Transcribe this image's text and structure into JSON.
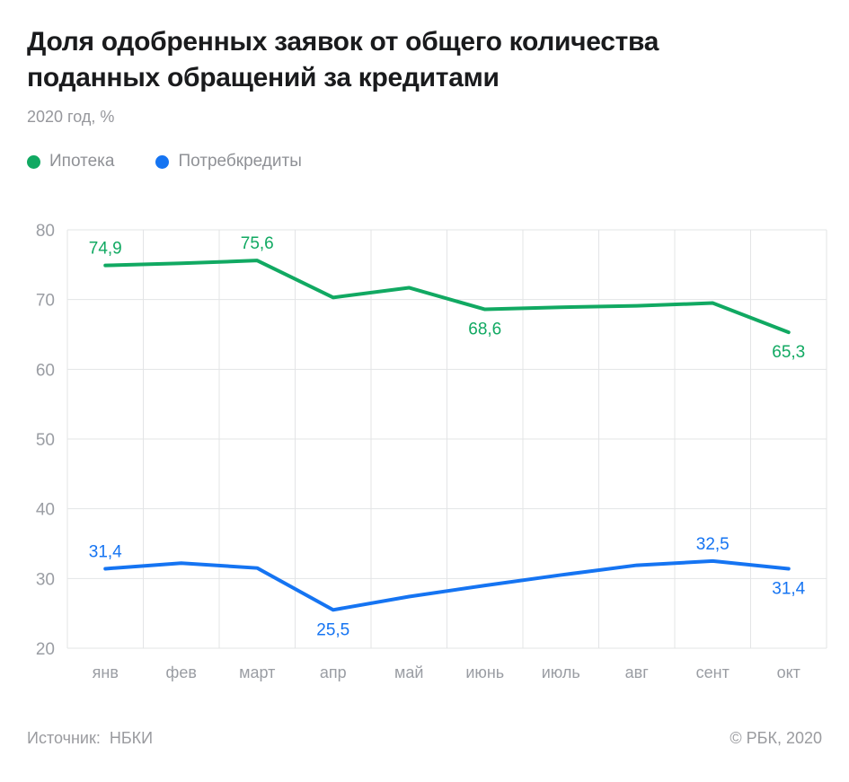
{
  "header": {
    "title": "Доля одобренных заявок от общего количества поданных обращений за кредитами",
    "title_lines": [
      "Доля одобренных заявок от общего количества",
      "поданных обращений за кредитами"
    ],
    "subtitle": "2020 год, %"
  },
  "chart_data": {
    "type": "line",
    "title": "Доля одобренных заявок от общего количества поданных обращений за кредитами",
    "subtitle": "2020 год, %",
    "xlabel": "",
    "ylabel": "%",
    "categories": [
      "янв",
      "фев",
      "март",
      "апр",
      "май",
      "июнь",
      "июль",
      "авг",
      "сент",
      "окт"
    ],
    "yticks": [
      80,
      70,
      60,
      50,
      40,
      30,
      20
    ],
    "ylim": [
      20,
      80
    ],
    "grid": true,
    "legend_position": "top",
    "series": [
      {
        "name": "Ипотека",
        "color": "#11a962",
        "values": [
          74.9,
          75.2,
          75.6,
          70.3,
          71.7,
          68.6,
          68.9,
          69.1,
          69.5,
          65.3
        ],
        "point_labels": [
          {
            "index": 0,
            "text": "74,9",
            "placement": "above"
          },
          {
            "index": 2,
            "text": "75,6",
            "placement": "above"
          },
          {
            "index": 5,
            "text": "68,6",
            "placement": "below"
          },
          {
            "index": 9,
            "text": "65,3",
            "placement": "below"
          }
        ]
      },
      {
        "name": "Потребкредиты",
        "color": "#1574f2",
        "values": [
          31.4,
          32.2,
          31.5,
          25.5,
          27.4,
          29.0,
          30.5,
          31.9,
          32.5,
          31.4
        ],
        "point_labels": [
          {
            "index": 0,
            "text": "31,4",
            "placement": "above"
          },
          {
            "index": 3,
            "text": "25,5",
            "placement": "below"
          },
          {
            "index": 8,
            "text": "32,5",
            "placement": "above"
          },
          {
            "index": 9,
            "text": "31,4",
            "placement": "below"
          }
        ]
      }
    ]
  },
  "footer": {
    "source_label": "Источник:",
    "source_value": "НБКИ",
    "copyright": "© РБК, 2020"
  },
  "colors": {
    "grid": "#e3e4e6",
    "axis_text": "#9a9da3",
    "title_text": "#1a1b1d",
    "muted_text": "#96979c",
    "background": "#ffffff"
  }
}
